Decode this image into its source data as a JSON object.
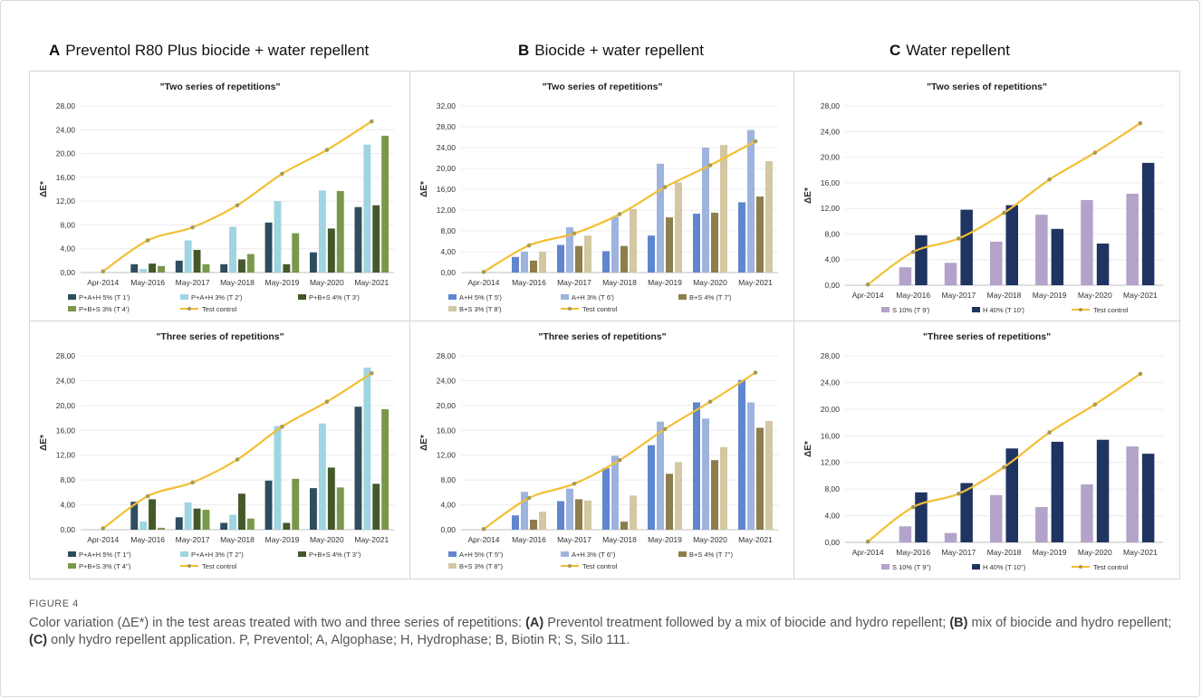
{
  "figure": {
    "titles": [
      {
        "letter": "A",
        "text": "Preventol R80 Plus biocide + water repellent"
      },
      {
        "letter": "B",
        "text": "Biocide + water repellent"
      },
      {
        "letter": "C",
        "text": "Water repellent"
      }
    ],
    "caption_label": "FIGURE 4",
    "caption_segments": [
      {
        "text": "Color variation (ΔE*) in the test areas treated with two and three series of repetitions: ",
        "bold": false
      },
      {
        "text": "(A)",
        "bold": true
      },
      {
        "text": " Preventol treatment followed by a mix of biocide and hydro repellent; ",
        "bold": false
      },
      {
        "text": "(B)",
        "bold": true
      },
      {
        "text": " mix of biocide and hydro repellent; ",
        "bold": false
      },
      {
        "text": "(C)",
        "bold": true
      },
      {
        "text": " only hydro repellent application. P, Preventol; A, Algophase; H, Hydrophase; B, Biotin R; S, Silo 111.",
        "bold": false
      }
    ]
  },
  "chart_data": [
    {
      "panel": "A",
      "row": "two",
      "type": "bar",
      "title": "\"Two series of repetitions\"",
      "ylabel": "ΔE*",
      "ylim": [
        0,
        28
      ],
      "yticks": [
        "0,00",
        "4,00",
        "8,00",
        "12,00",
        "16,00",
        "20,00",
        "24,00",
        "28,00"
      ],
      "categories": [
        "Apr-2014",
        "May-2016",
        "May-2017",
        "May-2018",
        "May-2019",
        "May-2020",
        "May-2021"
      ],
      "series": [
        {
          "name": "P+A+H 5% (T 1')",
          "color": "#2e4d5e",
          "values": [
            null,
            1.4,
            2.0,
            1.4,
            8.4,
            3.4,
            11.0
          ]
        },
        {
          "name": "P+A+H 3% (T 2')",
          "color": "#9fd4e2",
          "values": [
            null,
            0.6,
            5.4,
            7.7,
            12.0,
            13.8,
            21.5
          ]
        },
        {
          "name": "P+B+S 4% (T 3')",
          "color": "#44582a",
          "values": [
            null,
            1.5,
            3.8,
            2.2,
            1.4,
            7.4,
            11.3
          ]
        },
        {
          "name": "P+B+S 3% (T 4')",
          "color": "#79984a",
          "values": [
            null,
            1.1,
            1.4,
            3.1,
            6.6,
            13.7,
            23.0
          ]
        }
      ],
      "line": {
        "name": "Test control",
        "color": "#f2bf32",
        "values": [
          0.2,
          5.4,
          7.6,
          11.3,
          16.6,
          20.6,
          25.4
        ]
      }
    },
    {
      "panel": "B",
      "row": "two",
      "type": "bar",
      "title": "\"Two series of  repetitions\"",
      "ylabel": "ΔE*",
      "ylim": [
        0,
        32
      ],
      "yticks": [
        "0,00",
        "4,00",
        "8,00",
        "12,00",
        "16,00",
        "20,00",
        "24,00",
        "28,00",
        "32,00"
      ],
      "categories": [
        "Apr-2014",
        "May-2016",
        "May-2017",
        "May-2018",
        "May-2019",
        "May-2020",
        "May-2021"
      ],
      "series": [
        {
          "name": "A+H 5% (T 5')",
          "color": "#5f86cf",
          "values": [
            null,
            3.0,
            5.3,
            4.1,
            7.1,
            11.3,
            13.5
          ]
        },
        {
          "name": "A+H 3% (T 6')",
          "color": "#9eb4de",
          "values": [
            null,
            4.0,
            8.7,
            10.7,
            20.9,
            24.0,
            27.4
          ]
        },
        {
          "name": "B+S 4% (T 7')",
          "color": "#8d7e4c",
          "values": [
            null,
            2.3,
            5.1,
            5.1,
            10.6,
            11.5,
            14.6
          ]
        },
        {
          "name": "B+S 3% (T 8')",
          "color": "#d3c8a3",
          "values": [
            null,
            4.0,
            7.1,
            12.2,
            17.3,
            24.5,
            21.4
          ]
        }
      ],
      "line": {
        "name": "Test control",
        "color": "#f2bf32",
        "values": [
          0.1,
          5.2,
          7.5,
          11.2,
          16.4,
          20.6,
          25.2
        ]
      }
    },
    {
      "panel": "C",
      "row": "two",
      "type": "bar",
      "title": "\"Two series of repetitions\"",
      "ylabel": "ΔE*",
      "ylim": [
        0,
        28
      ],
      "yticks": [
        "0,00",
        "4,00",
        "8,00",
        "12,00",
        "16,00",
        "20,00",
        "24,00",
        "28,00"
      ],
      "categories": [
        "Apr-2014",
        "May-2016",
        "May-2017",
        "May-2018",
        "May-2019",
        "May-2020",
        "May-2021"
      ],
      "series": [
        {
          "name": "S 10% (T 9')",
          "color": "#b3a2c9",
          "values": [
            null,
            2.8,
            3.5,
            6.8,
            11.0,
            13.3,
            14.3
          ]
        },
        {
          "name": "H 40% (T 10')",
          "color": "#1f3461",
          "values": [
            null,
            7.8,
            11.8,
            12.5,
            8.8,
            6.5,
            19.1
          ]
        }
      ],
      "line": {
        "name": "Test control",
        "color": "#f2bf32",
        "values": [
          0.1,
          5.2,
          7.3,
          11.3,
          16.5,
          20.7,
          25.3
        ]
      }
    },
    {
      "panel": "A",
      "row": "three",
      "type": "bar",
      "title": "\"Three series of repetitions\"",
      "ylabel": "ΔE*",
      "ylim": [
        0,
        28
      ],
      "yticks": [
        "0,00",
        "4,00",
        "8,00",
        "12,00",
        "16,00",
        "20,00",
        "24,00",
        "28,00"
      ],
      "categories": [
        "Apr-2014",
        "May-2016",
        "May-2017",
        "May-2018",
        "May-2019",
        "May-2020",
        "May-2021"
      ],
      "series": [
        {
          "name": "P+A+H 5% (T 1'')",
          "color": "#2e4d5e",
          "values": [
            null,
            4.5,
            2.0,
            1.1,
            7.9,
            6.7,
            19.8
          ]
        },
        {
          "name": "P+A+H 3% (T 2'')",
          "color": "#9fd4e2",
          "values": [
            null,
            1.3,
            4.4,
            2.4,
            16.7,
            17.1,
            26.1
          ]
        },
        {
          "name": "P+B+S 4% (T 3'')",
          "color": "#44582a",
          "values": [
            null,
            4.9,
            3.4,
            5.8,
            1.1,
            10.0,
            7.4
          ]
        },
        {
          "name": "P+B+S 3% (T 4'')",
          "color": "#79984a",
          "values": [
            null,
            0.3,
            3.2,
            1.8,
            8.2,
            6.8,
            19.4
          ]
        }
      ],
      "line": {
        "name": "Test control",
        "color": "#f2bf32",
        "values": [
          0.2,
          5.4,
          7.6,
          11.3,
          16.6,
          20.6,
          25.2
        ]
      }
    },
    {
      "panel": "B",
      "row": "three",
      "type": "bar",
      "title": "\"Three series of repetitions\"",
      "ylabel": "ΔE*",
      "ylim": [
        0,
        28
      ],
      "yticks": [
        "0,00",
        "4,00",
        "8,00",
        "12,00",
        "16,00",
        "20,00",
        "24,00",
        "28,00"
      ],
      "categories": [
        "Apr-2014",
        "May-2016",
        "May-2017",
        "May-2018",
        "May-2019",
        "May-2020",
        "May-2021"
      ],
      "series": [
        {
          "name": "A+H 5% (T 5'')",
          "color": "#5f86cf",
          "values": [
            null,
            2.3,
            4.6,
            9.9,
            13.6,
            20.5,
            24.1
          ]
        },
        {
          "name": "A+H 3% (T 6'')",
          "color": "#9eb4de",
          "values": [
            null,
            6.1,
            6.6,
            11.9,
            17.4,
            17.9,
            20.5
          ]
        },
        {
          "name": "B+S 4% (T 7'')",
          "color": "#8d7e4c",
          "values": [
            null,
            1.6,
            4.9,
            1.3,
            9.0,
            11.2,
            16.4
          ]
        },
        {
          "name": "B+S 3% (T 8'')",
          "color": "#d3c8a3",
          "values": [
            null,
            2.9,
            4.7,
            5.5,
            10.9,
            13.3,
            17.5
          ]
        }
      ],
      "line": {
        "name": "Test control",
        "color": "#f2bf32",
        "values": [
          0.1,
          5.1,
          7.4,
          11.2,
          16.2,
          20.6,
          25.3
        ]
      }
    },
    {
      "panel": "C",
      "row": "three",
      "type": "bar",
      "title": "\"Three series of repetitions\"",
      "ylabel": "ΔE*",
      "ylim": [
        0,
        28
      ],
      "yticks": [
        "0,00",
        "4,00",
        "8,00",
        "12,00",
        "16,00",
        "20,00",
        "24,00",
        "28,00"
      ],
      "categories": [
        "Apr-2014",
        "May-2016",
        "May-2017",
        "May-2018",
        "May-2019",
        "May-2020",
        "May-2021"
      ],
      "series": [
        {
          "name": "S 10% (T 9'')",
          "color": "#b3a2c9",
          "values": [
            null,
            2.4,
            1.4,
            7.1,
            5.3,
            8.7,
            14.4
          ]
        },
        {
          "name": "H 40% (T 10'')",
          "color": "#1f3461",
          "values": [
            null,
            7.5,
            8.9,
            14.1,
            15.1,
            15.4,
            13.3
          ]
        }
      ],
      "line": {
        "name": "Test control",
        "color": "#f2bf32",
        "values": [
          0.1,
          5.3,
          7.3,
          11.3,
          16.5,
          20.7,
          25.3
        ]
      }
    }
  ]
}
